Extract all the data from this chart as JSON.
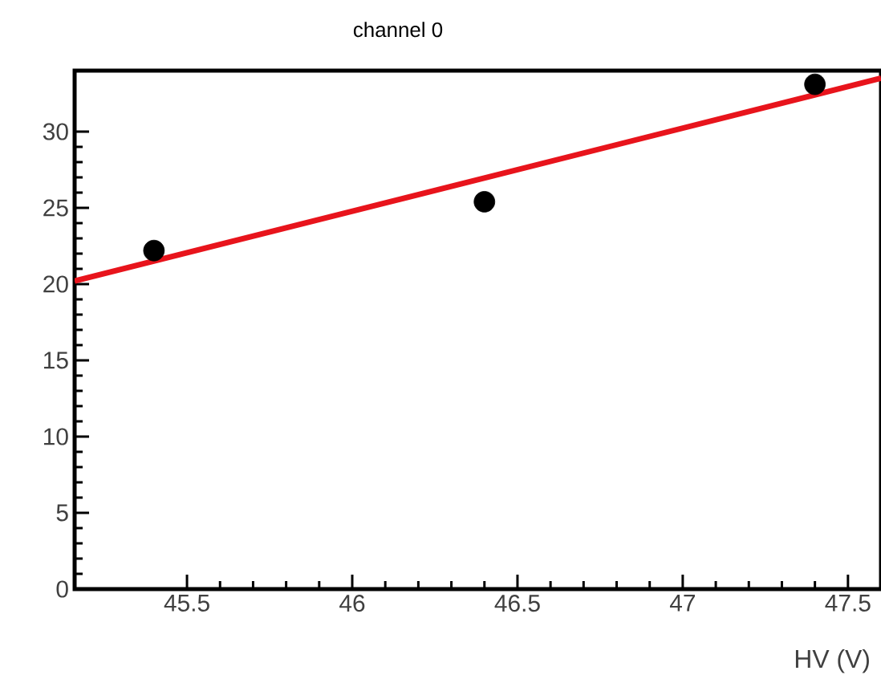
{
  "chart_data": {
    "type": "scatter",
    "title": "channel 0",
    "xlabel": "HV (V)",
    "xlim": [
      45.16,
      47.6
    ],
    "ylim": [
      0,
      34
    ],
    "xticks": [
      45.5,
      46,
      46.5,
      47,
      47.5
    ],
    "yticks": [
      0,
      5,
      10,
      15,
      20,
      25,
      30
    ],
    "series": [
      {
        "color": "#000000",
        "marker": "circle",
        "x": [
          45.4,
          46.4,
          47.4
        ],
        "values": [
          22.2,
          25.4,
          33.1
        ]
      },
      {
        "type": "line",
        "color": "#e8141c",
        "marker": "none",
        "line_style": "solid",
        "x": [
          45.16,
          47.6
        ],
        "values": [
          20.2,
          33.5
        ]
      }
    ]
  }
}
